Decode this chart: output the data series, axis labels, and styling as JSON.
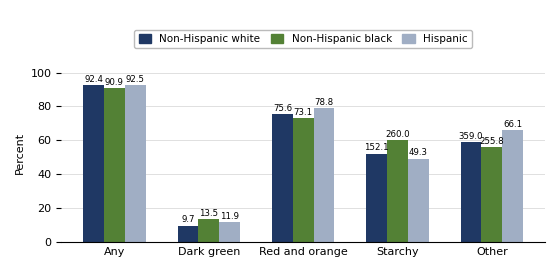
{
  "categories": [
    "Any",
    "Dark green",
    "Red and orange",
    "Starchy",
    "Other"
  ],
  "series": {
    "Non-Hispanic white": [
      92.4,
      9.7,
      75.6,
      52.1,
      59.0
    ],
    "Non-Hispanic black": [
      90.9,
      13.5,
      73.1,
      60.0,
      55.8
    ],
    "Hispanic": [
      92.5,
      11.9,
      78.8,
      49.3,
      66.1
    ]
  },
  "superscripts": {
    "Non-Hispanic white": [
      "",
      "",
      "",
      "1",
      "3"
    ],
    "Non-Hispanic black": [
      "",
      "",
      "",
      "2",
      "2"
    ],
    "Hispanic": [
      "",
      "",
      "",
      "",
      ""
    ]
  },
  "colors": {
    "Non-Hispanic white": "#1f3864",
    "Non-Hispanic black": "#538135",
    "Hispanic": "#a0aec4"
  },
  "ylabel": "Percent",
  "ylim": [
    0,
    105
  ],
  "yticks": [
    0,
    20,
    40,
    60,
    80,
    100
  ],
  "bar_width": 0.22,
  "figsize": [
    5.6,
    2.72
  ],
  "dpi": 100
}
